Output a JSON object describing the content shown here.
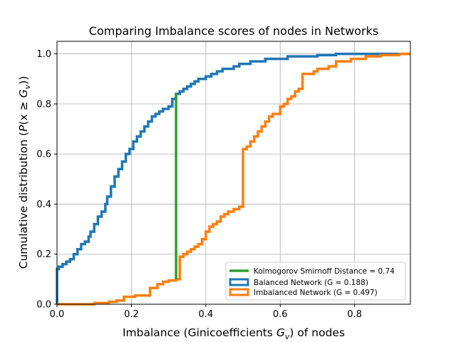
{
  "chart_data": {
    "type": "line",
    "title": "Comparing Imbalance scores of nodes in Networks",
    "xlabel_prefix": "Imbalance (Ginicoefficients ",
    "xlabel_var": "G",
    "xlabel_sub": "v",
    "xlabel_suffix": ") of nodes",
    "ylabel_prefix": "Cumulative distribution (",
    "ylabel_func": "P",
    "ylabel_inner": "(x ≥ ",
    "ylabel_var": "G",
    "ylabel_sub": "v",
    "ylabel_suffix": "))",
    "xlim": [
      0,
      0.95
    ],
    "ylim": [
      0,
      1.05
    ],
    "x_ticks": [
      0.0,
      0.2,
      0.4,
      0.6,
      0.8
    ],
    "x_tick_labels": [
      "0.0",
      "0.2",
      "0.4",
      "0.6",
      "0.8"
    ],
    "y_ticks": [
      0.0,
      0.2,
      0.4,
      0.6,
      0.8,
      1.0
    ],
    "y_tick_labels": [
      "0.0",
      "0.2",
      "0.4",
      "0.6",
      "0.8",
      "1.0"
    ],
    "grid": true,
    "legend_position": "lower-right",
    "ks_line": {
      "name": "Kolmogorov Smirnoff Distance = 0.74",
      "color": "#2ca02c",
      "x": [
        0.32,
        0.32
      ],
      "y": [
        0.1,
        0.84
      ]
    },
    "series": [
      {
        "name": "Balanced Network (G = 0.188)",
        "color": "#1f77b4",
        "points": [
          [
            0.0,
            0.0
          ],
          [
            0.0,
            0.14
          ],
          [
            0.005,
            0.15
          ],
          [
            0.015,
            0.16
          ],
          [
            0.025,
            0.17
          ],
          [
            0.035,
            0.18
          ],
          [
            0.045,
            0.2
          ],
          [
            0.055,
            0.22
          ],
          [
            0.065,
            0.24
          ],
          [
            0.075,
            0.25
          ],
          [
            0.085,
            0.27
          ],
          [
            0.09,
            0.29
          ],
          [
            0.1,
            0.32
          ],
          [
            0.11,
            0.35
          ],
          [
            0.12,
            0.37
          ],
          [
            0.13,
            0.4
          ],
          [
            0.135,
            0.43
          ],
          [
            0.145,
            0.47
          ],
          [
            0.155,
            0.51
          ],
          [
            0.165,
            0.54
          ],
          [
            0.175,
            0.57
          ],
          [
            0.185,
            0.6
          ],
          [
            0.195,
            0.62
          ],
          [
            0.205,
            0.65
          ],
          [
            0.215,
            0.67
          ],
          [
            0.225,
            0.69
          ],
          [
            0.235,
            0.71
          ],
          [
            0.245,
            0.73
          ],
          [
            0.255,
            0.75
          ],
          [
            0.265,
            0.76
          ],
          [
            0.275,
            0.77
          ],
          [
            0.285,
            0.78
          ],
          [
            0.3,
            0.79
          ],
          [
            0.31,
            0.82
          ],
          [
            0.32,
            0.84
          ],
          [
            0.33,
            0.85
          ],
          [
            0.34,
            0.86
          ],
          [
            0.35,
            0.87
          ],
          [
            0.36,
            0.88
          ],
          [
            0.37,
            0.89
          ],
          [
            0.38,
            0.9
          ],
          [
            0.39,
            0.9
          ],
          [
            0.4,
            0.91
          ],
          [
            0.415,
            0.92
          ],
          [
            0.43,
            0.93
          ],
          [
            0.445,
            0.94
          ],
          [
            0.46,
            0.94
          ],
          [
            0.475,
            0.95
          ],
          [
            0.49,
            0.96
          ],
          [
            0.505,
            0.96
          ],
          [
            0.52,
            0.97
          ],
          [
            0.54,
            0.97
          ],
          [
            0.56,
            0.98
          ],
          [
            0.59,
            0.98
          ],
          [
            0.62,
            0.99
          ],
          [
            0.66,
            0.99
          ],
          [
            0.7,
            0.995
          ],
          [
            0.75,
            1.0
          ],
          [
            0.8,
            1.0
          ],
          [
            0.95,
            1.0
          ]
        ]
      },
      {
        "name": "Imbalanced Network (G = 0.497)",
        "color": "#ff7f0e",
        "points": [
          [
            0.0,
            0.0
          ],
          [
            0.1,
            0.005
          ],
          [
            0.14,
            0.01
          ],
          [
            0.16,
            0.015
          ],
          [
            0.18,
            0.03
          ],
          [
            0.21,
            0.035
          ],
          [
            0.25,
            0.065
          ],
          [
            0.27,
            0.08
          ],
          [
            0.285,
            0.09
          ],
          [
            0.3,
            0.095
          ],
          [
            0.32,
            0.1
          ],
          [
            0.33,
            0.19
          ],
          [
            0.34,
            0.2
          ],
          [
            0.35,
            0.21
          ],
          [
            0.36,
            0.22
          ],
          [
            0.37,
            0.23
          ],
          [
            0.38,
            0.24
          ],
          [
            0.39,
            0.26
          ],
          [
            0.4,
            0.29
          ],
          [
            0.41,
            0.31
          ],
          [
            0.42,
            0.32
          ],
          [
            0.43,
            0.33
          ],
          [
            0.44,
            0.35
          ],
          [
            0.45,
            0.36
          ],
          [
            0.46,
            0.37
          ],
          [
            0.475,
            0.38
          ],
          [
            0.49,
            0.39
          ],
          [
            0.5,
            0.62
          ],
          [
            0.51,
            0.63
          ],
          [
            0.52,
            0.65
          ],
          [
            0.53,
            0.67
          ],
          [
            0.54,
            0.69
          ],
          [
            0.55,
            0.71
          ],
          [
            0.56,
            0.73
          ],
          [
            0.57,
            0.75
          ],
          [
            0.58,
            0.76
          ],
          [
            0.6,
            0.79
          ],
          [
            0.61,
            0.8
          ],
          [
            0.62,
            0.82
          ],
          [
            0.63,
            0.83
          ],
          [
            0.64,
            0.85
          ],
          [
            0.65,
            0.86
          ],
          [
            0.66,
            0.92
          ],
          [
            0.69,
            0.93
          ],
          [
            0.7,
            0.94
          ],
          [
            0.73,
            0.95
          ],
          [
            0.75,
            0.97
          ],
          [
            0.79,
            0.98
          ],
          [
            0.83,
            0.99
          ],
          [
            0.87,
            0.995
          ],
          [
            0.92,
            1.0
          ],
          [
            0.95,
            1.0
          ]
        ]
      }
    ]
  }
}
